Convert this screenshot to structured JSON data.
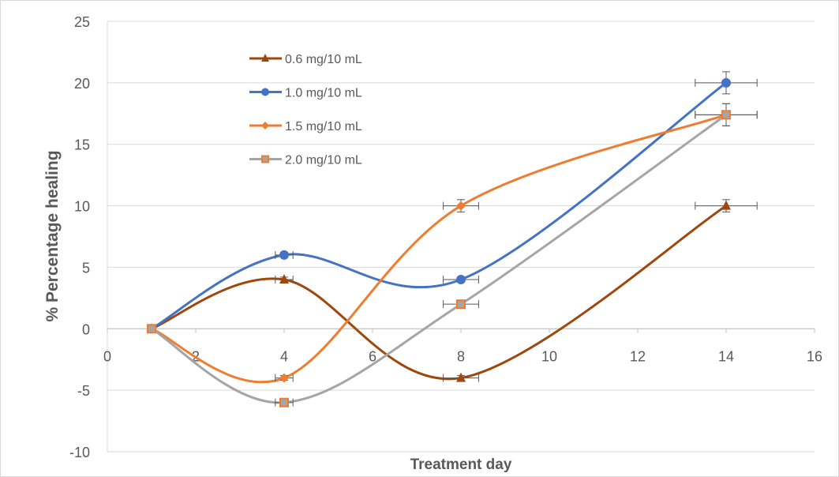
{
  "chart_data": {
    "type": "line",
    "smoothed": true,
    "title": "",
    "xlabel": "Treatment day",
    "ylabel": "% Percentage healing",
    "xlim": [
      0,
      16
    ],
    "ylim": [
      -10,
      25
    ],
    "xticks": [
      0,
      2,
      4,
      6,
      8,
      10,
      12,
      14,
      16
    ],
    "yticks": [
      -10,
      -5,
      0,
      5,
      10,
      15,
      20,
      25
    ],
    "grid": "horizontal",
    "legend": "top-left",
    "x": [
      1,
      4,
      8,
      14
    ],
    "x_error": [
      0,
      0.2,
      0.4,
      0.7
    ],
    "series": [
      {
        "name": "0.6 mg/10 mL",
        "color": "#9e480e",
        "marker": "triangle",
        "values": [
          0,
          4,
          -4,
          10
        ],
        "y_error": [
          0,
          0.2,
          0.2,
          0.5
        ]
      },
      {
        "name": "1.0 mg/10 mL",
        "color": "#4472c4",
        "marker": "circle",
        "values": [
          0,
          6,
          4,
          20
        ],
        "y_error": [
          0,
          0.2,
          0.2,
          0.9
        ]
      },
      {
        "name": "1.5 mg/10 mL",
        "color": "#ed7d31",
        "marker": "diamond",
        "values": [
          0,
          -4,
          10,
          17.4
        ],
        "y_error": [
          0,
          0.2,
          0.5,
          0.9
        ]
      },
      {
        "name": "2.0 mg/10 mL",
        "color": "#a5a5a5",
        "marker": "square",
        "marker_edge": "#ed7d31",
        "values": [
          0,
          -6,
          2,
          17.4
        ],
        "y_error": [
          0,
          0.2,
          0.2,
          0.9
        ]
      }
    ]
  }
}
